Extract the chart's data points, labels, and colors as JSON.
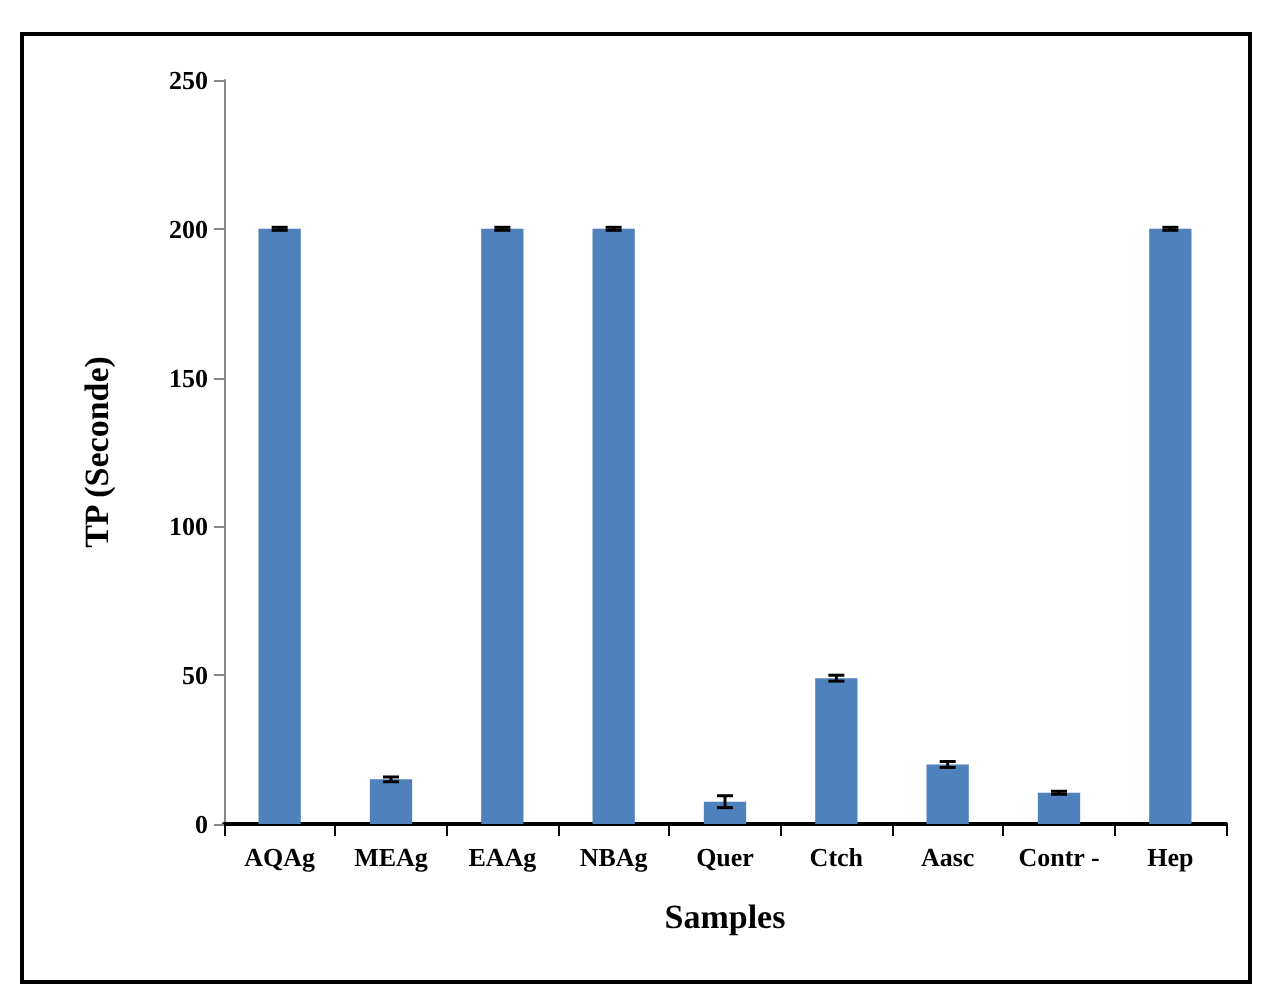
{
  "chart_data": {
    "type": "bar",
    "xlabel": "Samples",
    "ylabel": "TP (Seconde)",
    "categories": [
      "AQAg",
      "MEAg",
      "EAAg",
      "NBAg",
      "Quer",
      "Ctch",
      "Aasc",
      "Contr -",
      "Hep"
    ],
    "values": [
      200,
      15,
      200,
      200,
      7.5,
      49,
      20,
      10.5,
      200
    ],
    "errors": [
      0.5,
      0.8,
      0.5,
      0.5,
      2,
      1,
      1,
      0.5,
      0.5
    ],
    "color": "#4f81bd",
    "ylim": [
      0,
      250
    ],
    "yticks": [
      0,
      50,
      100,
      150,
      200,
      250
    ]
  }
}
